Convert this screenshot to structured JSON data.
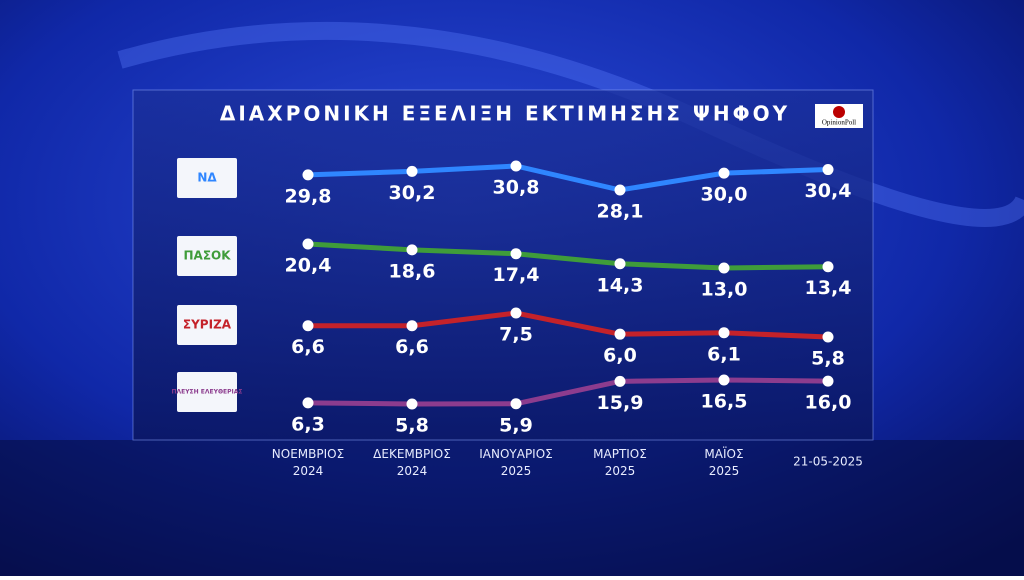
{
  "chart_data": {
    "type": "line",
    "title": "ΔΙΑΧΡΟΝΙΚΗ ΕΞΕΛΙΞΗ ΕΚΤΙΜΗΣΗΣ ΨΗΦΟΥ",
    "source": "OpinionPoll",
    "categories": [
      "ΝΟΕΜΒΡΙΟΣ 2024",
      "ΔΕΚΕΜΒΡΙΟΣ 2024",
      "ΙΑΝΟΥΑΡΙΟΣ 2025",
      "ΜΑΡΤΙΟΣ 2025",
      "ΜΑΪΟΣ 2025",
      "21-05-2025"
    ],
    "series": [
      {
        "name": "ΝΔ",
        "color": "#2f86ff",
        "values": [
          29.8,
          30.2,
          30.8,
          28.1,
          30.0,
          30.4
        ],
        "value_labels": [
          "29,8",
          "30,2",
          "30,8",
          "28,1",
          "30,0",
          "30,4"
        ]
      },
      {
        "name": "ΠΑΣΟΚ",
        "color": "#3f9c3a",
        "values": [
          20.4,
          18.6,
          17.4,
          14.3,
          13.0,
          13.4
        ],
        "value_labels": [
          "20,4",
          "18,6",
          "17,4",
          "14,3",
          "13,0",
          "13,4"
        ]
      },
      {
        "name": "ΣΥΡΙΖΑ",
        "color": "#c4222a",
        "values": [
          6.6,
          6.6,
          7.5,
          6.0,
          6.1,
          5.8
        ],
        "value_labels": [
          "6,6",
          "6,6",
          "7,5",
          "6,0",
          "6,1",
          "5,8"
        ]
      },
      {
        "name": "ΠΛΕΥΣΗ ΕΛΕΥΘΕΡΙΑΣ",
        "color": "#8c3c8e",
        "values": [
          6.3,
          5.8,
          5.9,
          15.9,
          16.5,
          16.0
        ],
        "value_labels": [
          "6,3",
          "5,8",
          "5,9",
          "15,9",
          "16,5",
          "16,0"
        ]
      }
    ]
  }
}
